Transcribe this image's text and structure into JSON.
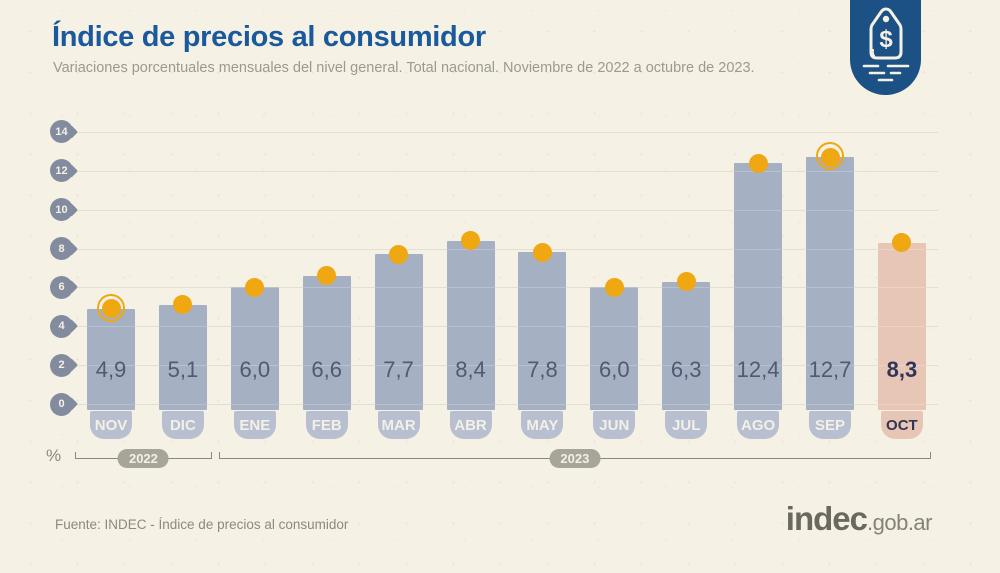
{
  "header": {
    "title": "Índice de precios al consumidor",
    "subtitle": "Variaciones porcentuales mensuales del nivel general. Total nacional. Noviembre de 2022 a octubre de 2023."
  },
  "chart_data": {
    "type": "bar",
    "title": "Índice de precios al consumidor",
    "subtitle": "Variaciones porcentuales mensuales del nivel general. Total nacional. Noviembre de 2022 a octubre de 2023.",
    "ylabel": "%",
    "ylim": [
      0,
      14
    ],
    "yticks": [
      14,
      12,
      10,
      8,
      6,
      4,
      2,
      0
    ],
    "grid": true,
    "categories": [
      "NOV",
      "DIC",
      "ENE",
      "FEB",
      "MAR",
      "ABR",
      "MAY",
      "JUN",
      "JUL",
      "AGO",
      "SEP",
      "OCT"
    ],
    "values": [
      4.9,
      5.1,
      6.0,
      6.6,
      7.7,
      8.4,
      7.8,
      6.0,
      6.3,
      12.4,
      12.7,
      8.3
    ],
    "value_labels": [
      "4,9",
      "5,1",
      "6,0",
      "6,6",
      "7,7",
      "8,4",
      "7,8",
      "6,0",
      "6,3",
      "12,4",
      "12,7",
      "8,3"
    ],
    "highlighted_category": "OCT",
    "ringed_dot_categories": [
      "NOV",
      "SEP"
    ],
    "year_groups": [
      {
        "label": "2022",
        "from": "NOV",
        "to": "DIC"
      },
      {
        "label": "2023",
        "from": "ENE",
        "to": "OCT"
      }
    ],
    "colors": {
      "bar": "#a6b0c3",
      "bar_highlight": "#e8c6b5",
      "dot": "#efa712",
      "axis_pin": "#838c9f",
      "month_pill": "#b7bfd0",
      "year_pill": "#a7a49a",
      "title_blue": "#19599c",
      "badge_blue": "#1c5185",
      "background": "#f5f1e4"
    }
  },
  "axis": {
    "percent_label": "%"
  },
  "badge": {
    "icon": "price-tag-icon",
    "symbol": "$"
  },
  "footer": {
    "source": "Fuente: INDEC - Índice de precios al consumidor",
    "logo_main": "indec",
    "logo_suffix": ".gob.ar"
  }
}
